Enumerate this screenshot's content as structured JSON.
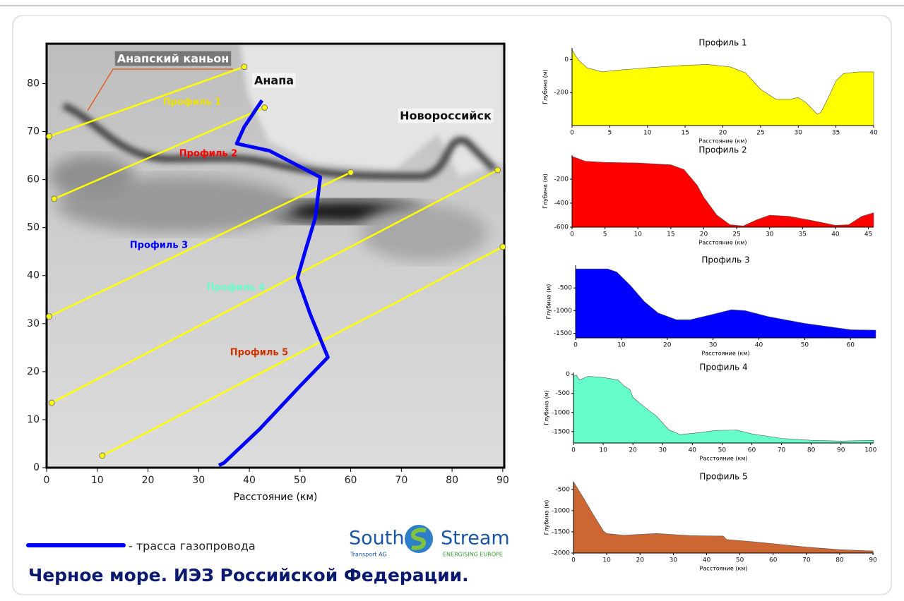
{
  "chart_data": [
    {
      "type": "map",
      "xlabel": "Расстояние (км)",
      "xlim": [
        0,
        90.3
      ],
      "ylim": [
        0,
        88.3
      ],
      "xticks": [
        0,
        10,
        20,
        30,
        40,
        50,
        60,
        70,
        80,
        90
      ],
      "yticks": [
        0,
        10,
        20,
        30,
        40,
        50,
        60,
        70,
        80
      ],
      "line_color": "#ffff00",
      "pipeline": {
        "name": "- трасса газопровода",
        "color": "#0000ff",
        "x": [
          34,
          35,
          42,
          50,
          55.5,
          52,
          49.5,
          51,
          53,
          54,
          44,
          37.5,
          39,
          42.5
        ],
        "y": [
          0.5,
          1,
          8,
          17,
          23,
          32,
          39.5,
          45,
          52,
          60.5,
          66,
          67.5,
          71,
          76.5
        ]
      },
      "profiles": [
        {
          "name": "Профиль 1",
          "color": "#f0e000",
          "x": [
            0.5,
            39
          ],
          "y": [
            69,
            83.5
          ]
        },
        {
          "name": "Профиль 2",
          "color": "#ff0000",
          "x": [
            1.5,
            43
          ],
          "y": [
            56,
            75
          ]
        },
        {
          "name": "Профиль 3",
          "color": "#0000ff",
          "x": [
            0.5,
            60
          ],
          "y": [
            31.5,
            61.5
          ]
        },
        {
          "name": "Профиль 4",
          "color": "#66ffcc",
          "x": [
            1,
            89
          ],
          "y": [
            13.5,
            62
          ]
        },
        {
          "name": "Профиль 5",
          "color": "#cc3300",
          "x": [
            11,
            90
          ],
          "y": [
            2.5,
            46
          ]
        }
      ],
      "places": [
        "Анапский каньон",
        "Анапа",
        "Новороссийск"
      ]
    },
    {
      "type": "area",
      "title": "Профиль 1",
      "xlabel": "Расстояние (км)",
      "ylabel": "Глубина (м)",
      "color": "#ffff00",
      "xlim": [
        0,
        40
      ],
      "ylim": [
        -400,
        70
      ],
      "xticks": [
        0,
        5,
        10,
        15,
        20,
        25,
        30,
        35,
        40
      ],
      "yticks": [
        -200,
        0
      ],
      "x": [
        0,
        0.5,
        1,
        2,
        4,
        6,
        10,
        15,
        18,
        21,
        23,
        25,
        27,
        29,
        30,
        31,
        32.5,
        33,
        34,
        35,
        36,
        38,
        40
      ],
      "values": [
        60,
        20,
        -10,
        -50,
        -75,
        -65,
        -50,
        -35,
        -30,
        -45,
        -80,
        -180,
        -240,
        -240,
        -230,
        -260,
        -330,
        -320,
        -230,
        -130,
        -85,
        -75,
        -75
      ]
    },
    {
      "type": "area",
      "title": "Профиль 2",
      "xlabel": "Расстояние (км)",
      "ylabel": "Глубина (м)",
      "color": "#ff0000",
      "xlim": [
        0,
        45.8
      ],
      "ylim": [
        -600,
        0
      ],
      "xticks": [
        0,
        5,
        10,
        15,
        20,
        25,
        30,
        35,
        40,
        45
      ],
      "yticks": [
        -600,
        -400,
        -200
      ],
      "x": [
        0,
        2,
        5,
        10,
        15,
        17,
        19,
        20,
        22,
        24,
        26,
        28,
        30,
        33,
        36,
        40,
        42,
        44,
        45.8
      ],
      "values": [
        -10,
        -50,
        -60,
        -65,
        -80,
        -120,
        -250,
        -350,
        -500,
        -580,
        -590,
        -540,
        -500,
        -510,
        -540,
        -585,
        -580,
        -510,
        -480
      ]
    },
    {
      "type": "area",
      "title": "Профиль 3",
      "xlabel": "Расстояние (км)",
      "ylabel": "Глубина (м)",
      "color": "#0000ff",
      "xlim": [
        0,
        65.5
      ],
      "ylim": [
        -1600,
        0
      ],
      "xticks": [
        0,
        10,
        20,
        30,
        40,
        50,
        60
      ],
      "yticks": [
        -1500,
        -1000,
        -500
      ],
      "x": [
        0,
        7,
        9,
        12,
        15,
        18,
        22,
        25,
        30,
        34,
        37,
        42,
        50,
        60,
        65.5
      ],
      "values": [
        -80,
        -80,
        -150,
        -450,
        -800,
        -1050,
        -1200,
        -1200,
        -1080,
        -980,
        -1000,
        -1130,
        -1280,
        -1420,
        -1430
      ]
    },
    {
      "type": "area",
      "title": "Профиль 4",
      "xlabel": "Расстояние (км)",
      "ylabel": "Глубина (м)",
      "color": "#66ffcc",
      "xlim": [
        0,
        101
      ],
      "ylim": [
        -1800,
        50
      ],
      "xticks": [
        0,
        10,
        20,
        30,
        40,
        50,
        60,
        70,
        80,
        90,
        100
      ],
      "yticks": [
        -1500,
        -1000,
        -500,
        0
      ],
      "x": [
        0,
        1,
        2,
        5,
        10,
        15,
        17,
        19,
        20,
        23,
        28,
        32,
        36,
        42,
        48,
        55,
        60,
        70,
        80,
        90,
        101
      ],
      "values": [
        -50,
        -20,
        -150,
        -50,
        -80,
        -150,
        -300,
        -400,
        -600,
        -800,
        -1100,
        -1450,
        -1580,
        -1530,
        -1470,
        -1460,
        -1560,
        -1680,
        -1730,
        -1750,
        -1730
      ]
    },
    {
      "type": "area",
      "title": "Профиль 5",
      "xlabel": "Расстояние (км)",
      "ylabel": "Глубина (м)",
      "color": "#cc6633",
      "xlim": [
        0,
        90.2
      ],
      "ylim": [
        -2000,
        -320
      ],
      "xticks": [
        0,
        10,
        20,
        30,
        40,
        50,
        60,
        70,
        80,
        90
      ],
      "yticks": [
        -2000,
        -1500,
        -1000,
        -500
      ],
      "x": [
        0,
        3,
        6,
        9,
        10,
        15,
        25,
        35,
        45,
        46,
        55,
        70,
        80,
        90
      ],
      "values": [
        -320,
        -700,
        -1100,
        -1480,
        -1540,
        -1580,
        -1540,
        -1590,
        -1600,
        -1680,
        -1740,
        -1860,
        -1920,
        -1950
      ]
    }
  ],
  "page": {
    "title": "Черное море. ИЭЗ Российской Федерации.",
    "logo": {
      "left": "South",
      "right": "Stream",
      "sub_left": "Transport AG",
      "sub_right": "ENERGISING EUROPE"
    }
  }
}
